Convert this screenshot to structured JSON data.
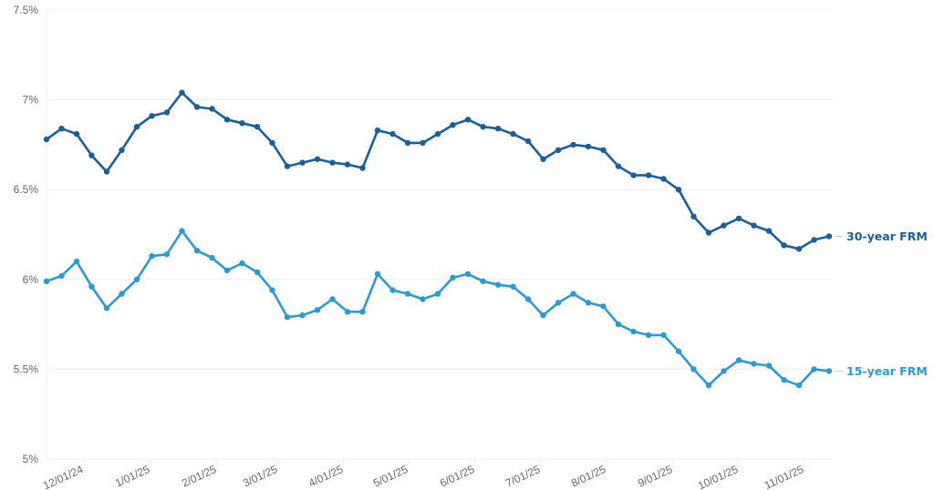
{
  "chart_data": {
    "type": "line",
    "title": "",
    "xlabel": "",
    "ylabel": "",
    "ylim": [
      5,
      7.5
    ],
    "y_ticks": [
      "5%",
      "5.5%",
      "6%",
      "6.5%",
      "7%",
      "7.5%"
    ],
    "y_tick_values": [
      5,
      5.5,
      6,
      6.5,
      7,
      7.5
    ],
    "x_ticks": [
      "12/01/24",
      "1/01/25",
      "2/01/25",
      "3/01/25",
      "4/01/25",
      "5/01/25",
      "6/01/25",
      "7/01/25",
      "8/01/25",
      "9/01/25",
      "10/01/25",
      "11/01/25"
    ],
    "x_tick_positions": [
      92,
      165,
      238,
      305,
      377,
      448,
      521,
      593,
      665,
      738,
      810,
      882
    ],
    "grid": true,
    "legend_position": "inline-right",
    "series": [
      {
        "name": "30-year FRM",
        "color": "#1a5f96",
        "values": [
          6.78,
          6.84,
          6.81,
          6.69,
          6.6,
          6.72,
          6.85,
          6.91,
          6.93,
          7.04,
          6.96,
          6.95,
          6.89,
          6.87,
          6.85,
          6.76,
          6.63,
          6.65,
          6.67,
          6.65,
          6.64,
          6.62,
          6.83,
          6.81,
          6.76,
          6.76,
          6.81,
          6.86,
          6.89,
          6.85,
          6.84,
          6.81,
          6.77,
          6.67,
          6.72,
          6.75,
          6.74,
          6.72,
          6.63,
          6.58,
          6.58,
          6.56,
          6.5,
          6.35,
          6.26,
          6.3,
          6.34,
          6.3,
          6.27,
          6.19,
          6.17,
          6.22,
          6.24
        ]
      },
      {
        "name": "15-year FRM",
        "color": "#2b9bcf",
        "values": [
          5.99,
          6.02,
          6.1,
          5.96,
          5.84,
          5.92,
          6.0,
          6.13,
          6.14,
          6.27,
          6.16,
          6.12,
          6.05,
          6.09,
          6.04,
          5.94,
          5.79,
          5.8,
          5.83,
          5.89,
          5.82,
          5.82,
          6.03,
          5.94,
          5.92,
          5.89,
          5.92,
          6.01,
          6.03,
          5.99,
          5.97,
          5.96,
          5.89,
          5.8,
          5.87,
          5.92,
          5.87,
          5.85,
          5.75,
          5.71,
          5.69,
          5.69,
          5.6,
          5.5,
          5.41,
          5.49,
          5.55,
          5.53,
          5.52,
          5.44,
          5.41,
          5.5,
          5.49
        ]
      }
    ]
  },
  "legend": {
    "series_30": "30-year FRM",
    "series_15": "15-year FRM"
  }
}
